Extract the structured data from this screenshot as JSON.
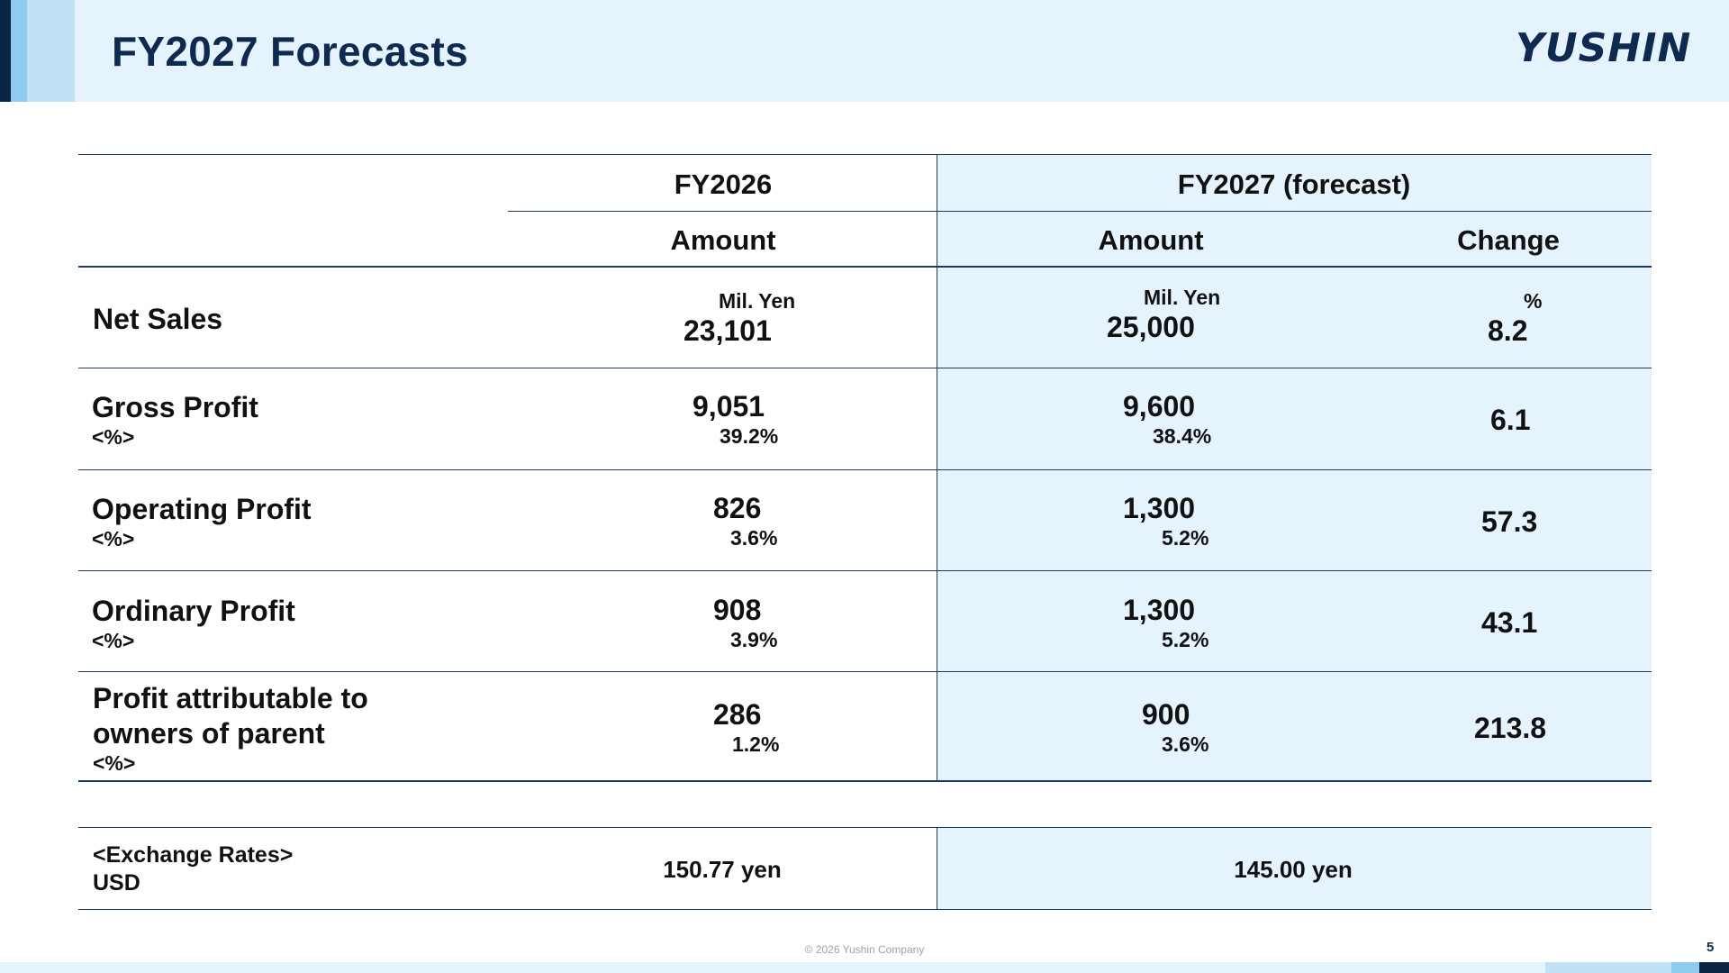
{
  "header": {
    "title": "FY2027 Forecasts",
    "logo_text": "YUSHIN"
  },
  "table": {
    "col_fy2026": "FY2026",
    "col_fy2027": "FY2027 (forecast)",
    "sub_amount_2026": "Amount",
    "sub_amount_2027": "Amount",
    "sub_change": "Change",
    "unit_2026": "Mil. Yen",
    "unit_2027": "Mil. Yen",
    "unit_change": "%",
    "rows": [
      {
        "label": "Net Sales",
        "pct_label": "",
        "fy2026_amount": "23,101",
        "fy2026_pct": "",
        "fy2027_amount": "25,000",
        "fy2027_pct": "",
        "change": "8.2"
      },
      {
        "label": "Gross Profit",
        "pct_label": "<%>",
        "fy2026_amount": "9,051",
        "fy2026_pct": "39.2%",
        "fy2027_amount": "9,600",
        "fy2027_pct": "38.4%",
        "change": "6.1"
      },
      {
        "label": "Operating Profit",
        "pct_label": "<%>",
        "fy2026_amount": "826",
        "fy2026_pct": "3.6%",
        "fy2027_amount": "1,300",
        "fy2027_pct": "5.2%",
        "change": "57.3"
      },
      {
        "label": "Ordinary Profit",
        "pct_label": "<%>",
        "fy2026_amount": "908",
        "fy2026_pct": "3.9%",
        "fy2027_amount": "1,300",
        "fy2027_pct": "5.2%",
        "change": "43.1"
      },
      {
        "label_line1": "Profit attributable to",
        "label_line2": "owners of parent",
        "pct_label": "<%>",
        "fy2026_amount": "286",
        "fy2026_pct": "1.2%",
        "fy2027_amount": "900",
        "fy2027_pct": "3.6%",
        "change": "213.8"
      }
    ]
  },
  "exchange": {
    "label_line1": "<Exchange Rates>",
    "label_line2": "USD",
    "fy2026": "150.77 yen",
    "fy2027": "145.00 yen"
  },
  "footer": {
    "copyright": "© 2026 Yushin Company",
    "page_number": "5"
  },
  "colors": {
    "header_band": "#e5f3fc",
    "title": "#0e2a50",
    "rule": "#1e3a5f",
    "forecast_shade": "#e5f3fc"
  }
}
